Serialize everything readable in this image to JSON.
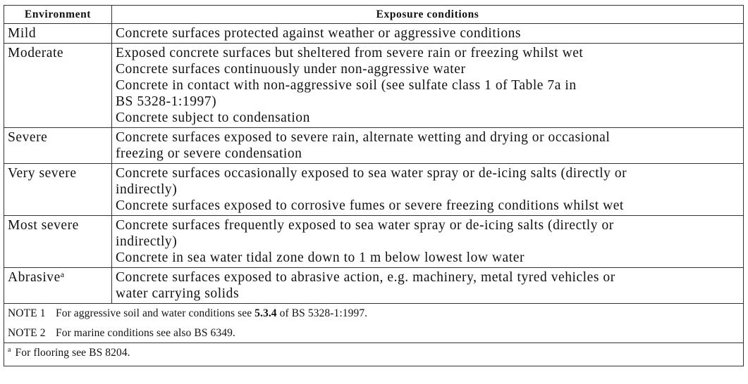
{
  "table": {
    "headers": [
      "Environment",
      "Exposure conditions"
    ],
    "rows": [
      {
        "environment": "Mild",
        "superscript": "",
        "conditions": [
          "Concrete surfaces protected against weather or aggressive conditions"
        ]
      },
      {
        "environment": "Moderate",
        "superscript": "",
        "conditions": [
          "Exposed concrete surfaces but sheltered from severe rain or freezing whilst wet",
          "Concrete surfaces continuously under non-aggressive water",
          "Concrete in contact with non-aggressive soil (see sulfate class 1 of Table 7a in",
          "BS 5328-1:1997)",
          "Concrete subject to condensation"
        ]
      },
      {
        "environment": "Severe",
        "superscript": "",
        "conditions": [
          "Concrete surfaces exposed to severe rain, alternate wetting and drying or occasional",
          "freezing or severe condensation"
        ]
      },
      {
        "environment": "Very severe",
        "superscript": "",
        "conditions": [
          "Concrete surfaces occasionally exposed to sea water spray or de-icing salts (directly or",
          "indirectly)",
          "Concrete surfaces exposed to corrosive fumes or severe freezing conditions whilst wet"
        ]
      },
      {
        "environment": "Most severe",
        "superscript": "",
        "conditions": [
          "Concrete surfaces frequently exposed to sea water spray or de-icing salts (directly or",
          "indirectly)",
          "Concrete in sea water tidal zone down to 1 m below lowest low water"
        ]
      },
      {
        "environment": "Abrasive",
        "superscript": "a",
        "conditions": [
          "Concrete surfaces exposed to abrasive action, e.g. machinery, metal tyred vehicles or",
          "water carrying solids"
        ]
      }
    ],
    "notes": [
      {
        "label": "NOTE 1",
        "before": "For aggressive soil and water conditions see ",
        "bold": "5.3.4",
        "after": " of BS 5328-1:1997."
      },
      {
        "label": "NOTE 2",
        "before": "For marine conditions see also BS 6349.",
        "bold": "",
        "after": ""
      }
    ],
    "footnote": {
      "mark": "a",
      "text": "For flooring see BS 8204."
    }
  }
}
